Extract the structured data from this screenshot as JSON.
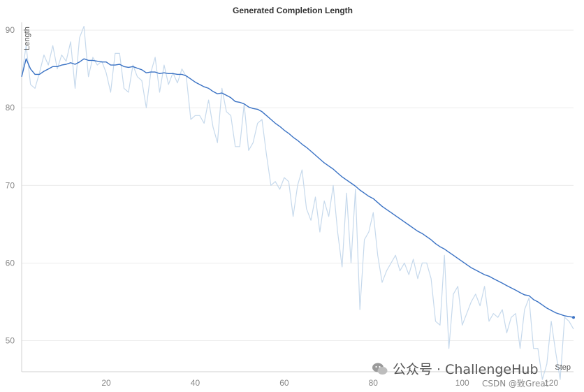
{
  "chart_data": {
    "type": "line",
    "title": "Generated Completion Length",
    "xlabel": "Step",
    "ylabel": "Length",
    "xlim": [
      1,
      125
    ],
    "ylim": [
      46,
      91
    ],
    "xticks": [
      20,
      40,
      60,
      80,
      100,
      120
    ],
    "yticks": [
      50,
      60,
      70,
      80,
      90
    ],
    "grid": true,
    "colors": {
      "smoothed": "#3a72c4",
      "raw": "#c6d9ec"
    },
    "series": [
      {
        "style": "raw",
        "x": [
          1,
          2,
          3,
          4,
          5,
          6,
          7,
          8,
          9,
          10,
          11,
          12,
          13,
          14,
          15,
          16,
          17,
          18,
          19,
          20,
          21,
          22,
          23,
          24,
          25,
          26,
          27,
          28,
          29,
          30,
          31,
          32,
          33,
          34,
          35,
          36,
          37,
          38,
          39,
          40,
          41,
          42,
          43,
          44,
          45,
          46,
          47,
          48,
          49,
          50,
          51,
          52,
          53,
          54,
          55,
          56,
          57,
          58,
          59,
          60,
          61,
          62,
          63,
          64,
          65,
          66,
          67,
          68,
          69,
          70,
          71,
          72,
          73,
          74,
          75,
          76,
          77,
          78,
          79,
          80,
          81,
          82,
          83,
          84,
          85,
          86,
          87,
          88,
          89,
          90,
          91,
          92,
          93,
          94,
          95,
          96,
          97,
          98,
          99,
          100,
          101,
          102,
          103,
          104,
          105,
          106,
          107,
          108,
          109,
          110,
          111,
          112,
          113,
          114,
          115,
          116,
          117,
          118,
          119,
          120,
          121,
          122,
          123,
          124,
          125
        ],
        "values": [
          84,
          88,
          83,
          82.5,
          84.5,
          86.8,
          85.5,
          88,
          85,
          86.8,
          86,
          88.5,
          82.5,
          89,
          90.5,
          84,
          86.5,
          85.5,
          86,
          84.5,
          82,
          87,
          87,
          82.5,
          82,
          85.5,
          84,
          83.5,
          80,
          84.5,
          86.5,
          82,
          85.5,
          83,
          84.5,
          83.2,
          85,
          84,
          78.5,
          79,
          79,
          78,
          81,
          77.5,
          75.5,
          82.5,
          79.5,
          79,
          75,
          75,
          80.5,
          74.5,
          75.5,
          78,
          78.5,
          74,
          70,
          70.5,
          69.5,
          71,
          70.5,
          66,
          70,
          72,
          67,
          65.5,
          68.5,
          64,
          68,
          66,
          70,
          64,
          59.5,
          69,
          60,
          69.5,
          54,
          63,
          64,
          66.5,
          61,
          57.5,
          59,
          60,
          61,
          59,
          60,
          58.5,
          60.5,
          58,
          60,
          60,
          58,
          52.5,
          52,
          61,
          49,
          56,
          57,
          52,
          53.5,
          55,
          56,
          54.5,
          57,
          52.5,
          53.5,
          53,
          54,
          51,
          53,
          53.5,
          49,
          54,
          55.5,
          49,
          49,
          45,
          47,
          52.5,
          48.5,
          45,
          53,
          52.5,
          51.5
        ]
      },
      {
        "style": "smoothed",
        "x": [
          1,
          2,
          3,
          4,
          5,
          6,
          7,
          8,
          9,
          10,
          11,
          12,
          13,
          14,
          15,
          16,
          17,
          18,
          19,
          20,
          21,
          22,
          23,
          24,
          25,
          26,
          27,
          28,
          29,
          30,
          31,
          32,
          33,
          34,
          35,
          36,
          37,
          38,
          39,
          40,
          41,
          42,
          43,
          44,
          45,
          46,
          47,
          48,
          49,
          50,
          51,
          52,
          53,
          54,
          55,
          56,
          57,
          58,
          59,
          60,
          61,
          62,
          63,
          64,
          65,
          66,
          67,
          68,
          69,
          70,
          71,
          72,
          73,
          74,
          75,
          76,
          77,
          78,
          79,
          80,
          81,
          82,
          83,
          84,
          85,
          86,
          87,
          88,
          89,
          90,
          91,
          92,
          93,
          94,
          95,
          96,
          97,
          98,
          99,
          100,
          101,
          102,
          103,
          104,
          105,
          106,
          107,
          108,
          109,
          110,
          111,
          112,
          113,
          114,
          115,
          116,
          117,
          118,
          119,
          120,
          121,
          122,
          123,
          124,
          125
        ],
        "values": [
          84,
          86.3,
          85,
          84.3,
          84.3,
          84.7,
          85,
          85.3,
          85.3,
          85.5,
          85.6,
          85.8,
          85.6,
          85.9,
          86.3,
          86.1,
          86.1,
          86,
          85.9,
          85.9,
          85.5,
          85.5,
          85.6,
          85.3,
          85.2,
          85.3,
          85.1,
          84.9,
          84.5,
          84.6,
          84.6,
          84.4,
          84.5,
          84.4,
          84.4,
          84.3,
          84.3,
          84.1,
          83.7,
          83.3,
          83,
          82.7,
          82.5,
          82.1,
          81.8,
          81.9,
          81.6,
          81.3,
          80.8,
          80.7,
          80.5,
          80.1,
          79.9,
          79.8,
          79.5,
          79,
          78.5,
          78,
          77.6,
          77.1,
          76.7,
          76.2,
          75.8,
          75.3,
          74.9,
          74.4,
          73.9,
          73.4,
          72.9,
          72.5,
          72.1,
          71.6,
          71.1,
          70.7,
          70.3,
          69.9,
          69.4,
          69,
          68.6,
          68.3,
          67.8,
          67.3,
          66.9,
          66.5,
          66.1,
          65.7,
          65.3,
          64.9,
          64.5,
          64.1,
          63.8,
          63.4,
          63,
          62.5,
          62.1,
          61.8,
          61.4,
          61,
          60.6,
          60.2,
          59.8,
          59.4,
          59.1,
          58.8,
          58.5,
          58.3,
          58,
          57.7,
          57.4,
          57.1,
          56.8,
          56.5,
          56.2,
          55.9,
          55.8,
          55.3,
          55,
          54.6,
          54.2,
          53.9,
          53.6,
          53.4,
          53.2,
          53.1,
          53
        ]
      }
    ]
  },
  "watermark": {
    "line1": "公众号 · ChallengeHub",
    "line2": "CSDN @致Great"
  }
}
